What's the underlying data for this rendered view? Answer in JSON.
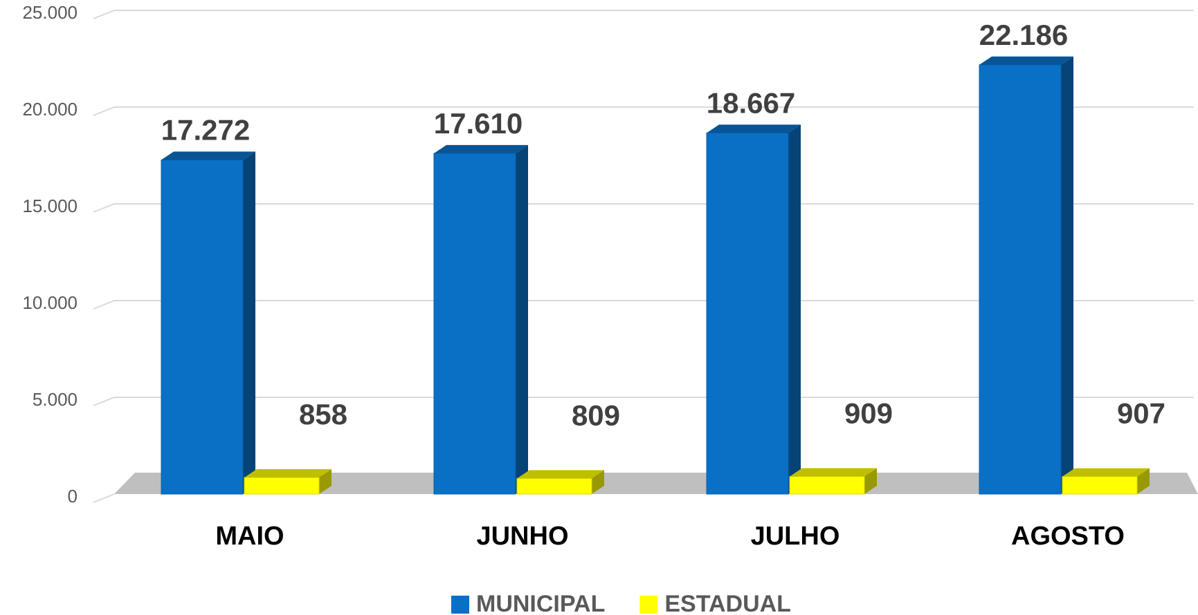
{
  "chart_data": {
    "type": "bar3d",
    "categories": [
      "MAIO",
      "JUNHO",
      "JULHO",
      "AGOSTO"
    ],
    "series": [
      {
        "name": "MUNICIPAL",
        "color": "#0a70c6",
        "values": [
          17272,
          17610,
          18667,
          22186
        ],
        "value_labels": [
          "17.272",
          "17.610",
          "18.667",
          "22.186"
        ]
      },
      {
        "name": "ESTADUAL",
        "color": "#ffff00",
        "values": [
          858,
          809,
          909,
          907
        ],
        "value_labels": [
          "858",
          "809",
          "909",
          "907"
        ]
      }
    ],
    "ylim": [
      0,
      25000
    ],
    "yticks": [
      0,
      {
        "value": 5000,
        "label": "5.000"
      },
      {
        "value": 10000,
        "label": "10.000"
      },
      {
        "value": 15000,
        "label": "15.000"
      },
      {
        "value": 20000,
        "label": "20.000"
      },
      {
        "value": 25000,
        "label": "25.000"
      }
    ],
    "grid": true,
    "legend": "bottom"
  }
}
